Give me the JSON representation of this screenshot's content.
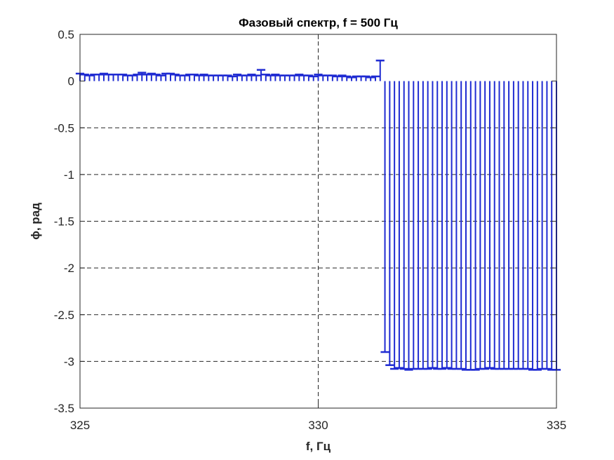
{
  "chart_data": {
    "type": "bar",
    "style": "stem",
    "title": "Фазовый спектр, f = 500 Гц",
    "xlabel": "f, Гц",
    "ylabel": "ϕ, рад",
    "xlim": [
      325,
      335
    ],
    "ylim": [
      -3.5,
      0.5
    ],
    "xticks": [
      325,
      330,
      335
    ],
    "xtick_labels": [
      "325",
      "330",
      "335"
    ],
    "yticks": [
      0.5,
      0,
      -0.5,
      -1,
      -1.5,
      -2,
      -2.5,
      -3,
      -3.5
    ],
    "ytick_labels": [
      "0.5",
      "0",
      "-0.5",
      "-1",
      "-1.5",
      "-2",
      "-2.5",
      "-3",
      "-3.5"
    ],
    "grid": "dashed",
    "grid_x_values": [
      330
    ],
    "grid_y_values": [
      -0.5,
      -1,
      -1.5,
      -2,
      -2.5,
      -3,
      -3.5
    ],
    "series_color": "#1f2bd2",
    "x_start": 325.0,
    "x_step": 0.1,
    "values": [
      0.08,
      0.07,
      0.06,
      0.07,
      0.07,
      0.08,
      0.07,
      0.07,
      0.07,
      0.07,
      0.06,
      0.06,
      0.07,
      0.09,
      0.07,
      0.08,
      0.07,
      0.06,
      0.08,
      0.08,
      0.07,
      0.06,
      0.06,
      0.07,
      0.07,
      0.06,
      0.07,
      0.06,
      0.06,
      0.06,
      0.06,
      0.06,
      0.05,
      0.07,
      0.06,
      0.06,
      0.07,
      0.06,
      0.12,
      0.07,
      0.06,
      0.07,
      0.06,
      0.06,
      0.06,
      0.06,
      0.07,
      0.06,
      0.06,
      0.05,
      0.07,
      0.06,
      0.06,
      0.06,
      0.05,
      0.06,
      0.05,
      0.04,
      0.05,
      0.05,
      0.05,
      0.04,
      0.05,
      0.22,
      -2.9,
      -3.04,
      -3.08,
      -3.07,
      -3.08,
      -3.09,
      -3.08,
      -3.08,
      -3.08,
      -3.08,
      -3.07,
      -3.08,
      -3.08,
      -3.07,
      -3.08,
      -3.08,
      -3.08,
      -3.09,
      -3.09,
      -3.09,
      -3.08,
      -3.08,
      -3.07,
      -3.08,
      -3.08,
      -3.08,
      -3.08,
      -3.08,
      -3.08,
      -3.08,
      -3.08,
      -3.09,
      -3.09,
      -3.08,
      -3.08,
      -3.09,
      -3.09
    ]
  }
}
